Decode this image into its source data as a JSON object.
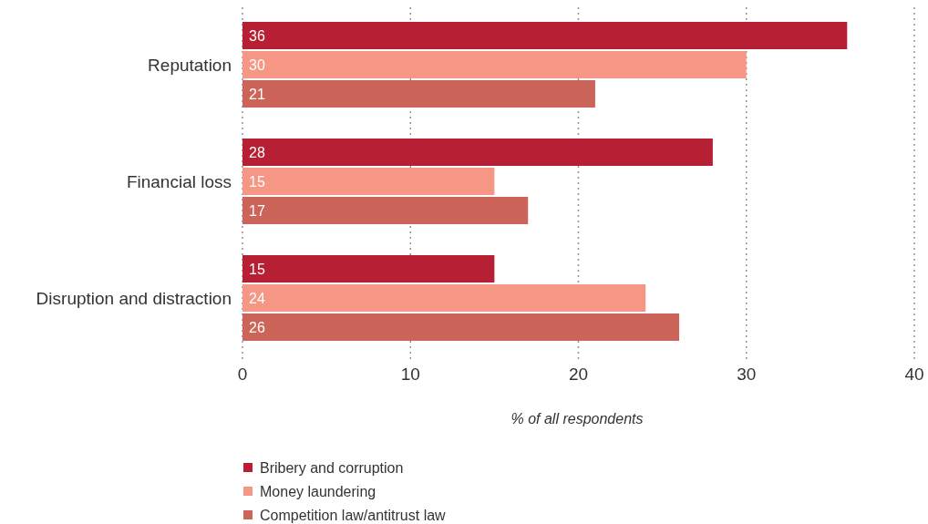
{
  "chart_data": {
    "type": "bar",
    "orientation": "horizontal",
    "categories": [
      "Reputation",
      "Financial loss",
      "Disruption and distraction"
    ],
    "series": [
      {
        "name": "Bribery and corruption",
        "color": "#b72034",
        "values": [
          36,
          28,
          15
        ]
      },
      {
        "name": "Money laundering",
        "color": "#f59784",
        "values": [
          30,
          15,
          24
        ]
      },
      {
        "name": "Competition law/antitrust law",
        "color": "#cc6459",
        "values": [
          21,
          17,
          26
        ]
      }
    ],
    "xlim": [
      0,
      40
    ],
    "xticks": [
      0,
      10,
      20,
      30,
      40
    ],
    "xlabel": "% of all respondents",
    "grid": "x",
    "legend": "bottom",
    "data_labels": true
  }
}
